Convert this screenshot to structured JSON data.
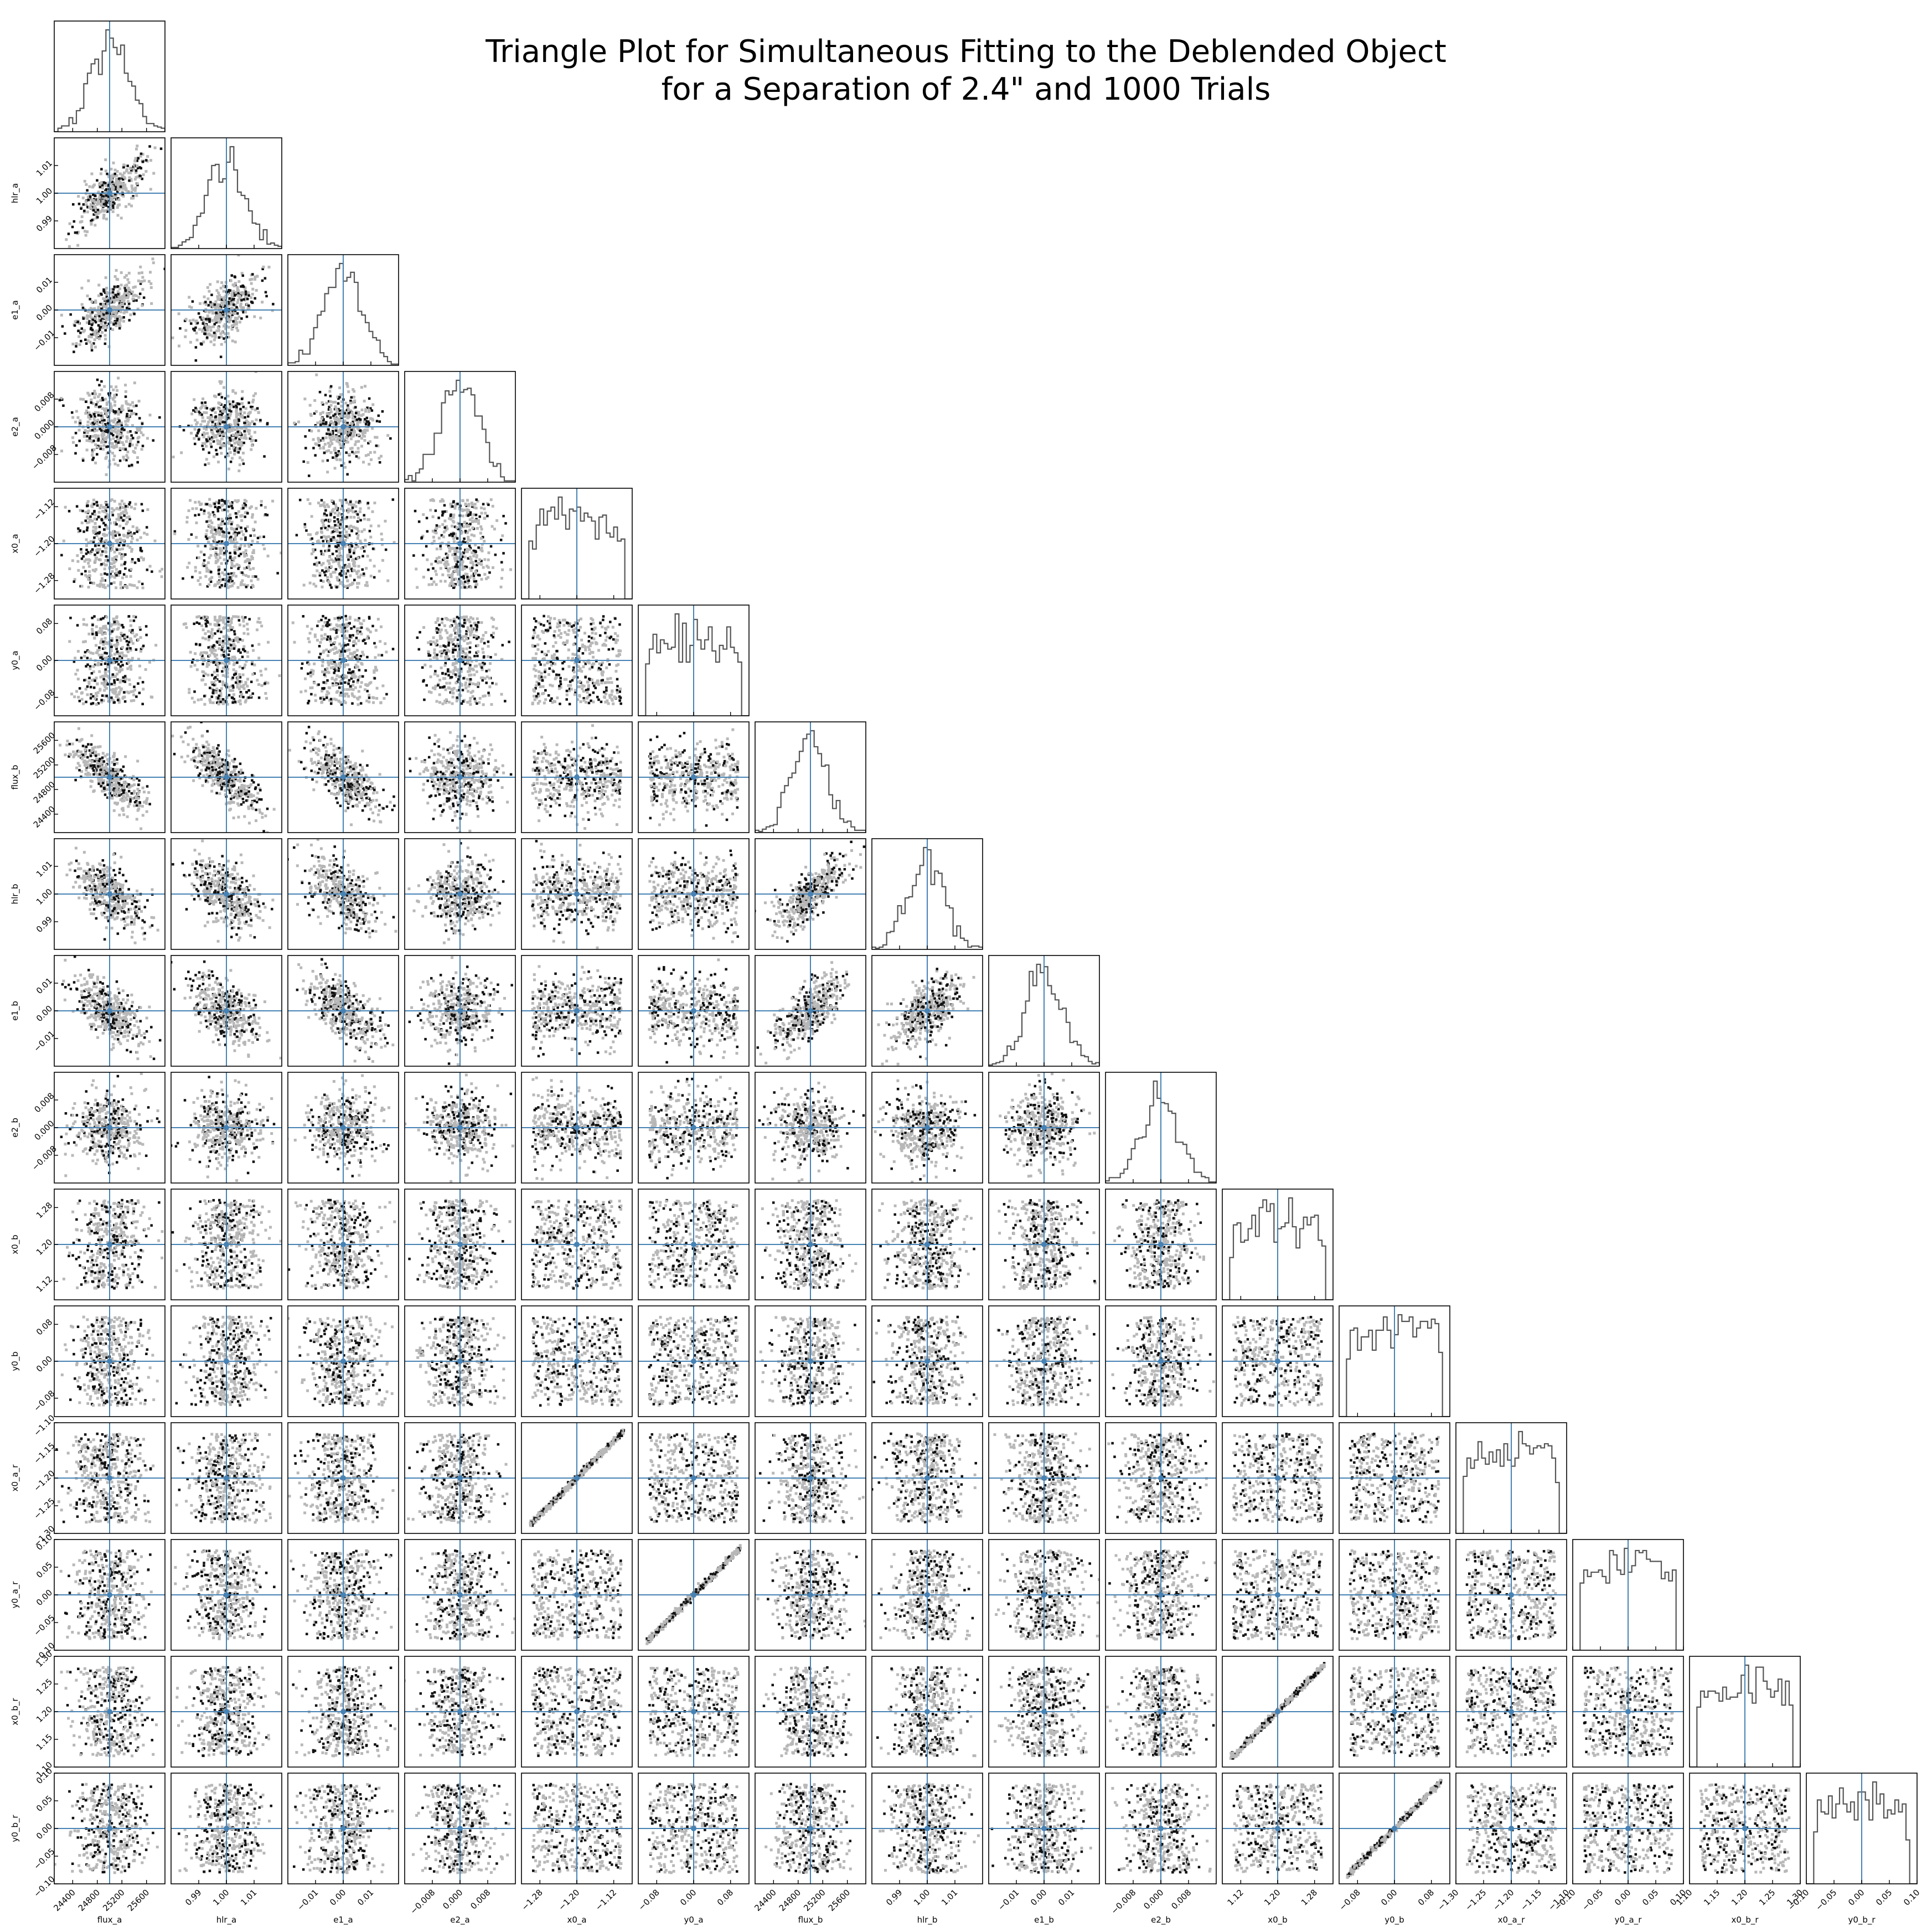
{
  "figure": {
    "title_line1": "Triangle Plot for Simultaneous Fitting to the Deblended Object",
    "title_line2": "for a Separation of 2.4\" and 1000 Trials"
  },
  "colors": {
    "truth_line": "#4682b4",
    "histogram": "#555555",
    "scatter_light": "#b8b8b8",
    "contour_dark": "#111111"
  },
  "chart_data": {
    "type": "scatter",
    "layout": "corner-triangle",
    "n_trials": 1000,
    "parameters": [
      {
        "name": "flux_a",
        "truth": 25000,
        "range": [
          24100,
          25900
        ],
        "ticks": [
          24400,
          24800,
          25200,
          25600
        ],
        "tick_labels": [
          "24400",
          "24800",
          "25200",
          "25600"
        ]
      },
      {
        "name": "hlr_a",
        "truth": 1.0,
        "range": [
          0.98,
          1.02
        ],
        "ticks": [
          0.99,
          1.0,
          1.01
        ],
        "tick_labels": [
          "0.99",
          "1.00",
          "1.01"
        ]
      },
      {
        "name": "e1_a",
        "truth": 0.0,
        "range": [
          -0.02,
          0.02
        ],
        "ticks": [
          -0.01,
          0.0,
          0.01
        ],
        "tick_labels": [
          "−0.01",
          "0.00",
          "0.01"
        ]
      },
      {
        "name": "e2_a",
        "truth": 0.0,
        "range": [
          -0.016,
          0.016
        ],
        "ticks": [
          -0.008,
          0.0,
          0.008
        ],
        "tick_labels": [
          "−0.008",
          "0.000",
          "0.008"
        ]
      },
      {
        "name": "x0_a",
        "truth": -1.2,
        "range": [
          -1.32,
          -1.08
        ],
        "ticks": [
          -1.28,
          -1.2,
          -1.12
        ],
        "tick_labels": [
          "−1.28",
          "−1.20",
          "−1.12"
        ]
      },
      {
        "name": "y0_a",
        "truth": 0.0,
        "range": [
          -0.12,
          0.12
        ],
        "ticks": [
          -0.08,
          0.0,
          0.08
        ],
        "tick_labels": [
          "−0.08",
          "0.00",
          "0.08"
        ]
      },
      {
        "name": "flux_b",
        "truth": 25000,
        "range": [
          24100,
          25900
        ],
        "ticks": [
          24400,
          24800,
          25200,
          25600
        ],
        "tick_labels": [
          "24400",
          "24800",
          "25200",
          "25600"
        ]
      },
      {
        "name": "hlr_b",
        "truth": 1.0,
        "range": [
          0.98,
          1.02
        ],
        "ticks": [
          0.99,
          1.0,
          1.01
        ],
        "tick_labels": [
          "0.99",
          "1.00",
          "1.01"
        ]
      },
      {
        "name": "e1_b",
        "truth": 0.0,
        "range": [
          -0.02,
          0.02
        ],
        "ticks": [
          -0.01,
          0.0,
          0.01
        ],
        "tick_labels": [
          "−0.01",
          "0.00",
          "0.01"
        ]
      },
      {
        "name": "e2_b",
        "truth": 0.0,
        "range": [
          -0.016,
          0.016
        ],
        "ticks": [
          -0.008,
          0.0,
          0.008
        ],
        "tick_labels": [
          "−0.008",
          "0.000",
          "0.008"
        ]
      },
      {
        "name": "x0_b",
        "truth": 1.2,
        "range": [
          1.08,
          1.32
        ],
        "ticks": [
          1.12,
          1.2,
          1.28
        ],
        "tick_labels": [
          "1.12",
          "1.20",
          "1.28"
        ]
      },
      {
        "name": "y0_b",
        "truth": 0.0,
        "range": [
          -0.12,
          0.12
        ],
        "ticks": [
          -0.08,
          0.0,
          0.08
        ],
        "tick_labels": [
          "−0.08",
          "0.00",
          "0.08"
        ]
      },
      {
        "name": "x0_a_r",
        "truth": -1.2,
        "range": [
          -1.3,
          -1.1
        ],
        "ticks": [
          -1.3,
          -1.25,
          -1.2,
          -1.15,
          -1.1
        ],
        "tick_labels": [
          "−1.30",
          "−1.25",
          "−1.20",
          "−1.15",
          "−1.10"
        ]
      },
      {
        "name": "y0_a_r",
        "truth": 0.0,
        "range": [
          -0.1,
          0.1
        ],
        "ticks": [
          -0.1,
          -0.05,
          0.0,
          0.05,
          0.1
        ],
        "tick_labels": [
          "−0.10",
          "−0.05",
          "0.00",
          "0.05",
          "0.10"
        ]
      },
      {
        "name": "x0_b_r",
        "truth": 1.2,
        "range": [
          1.1,
          1.3
        ],
        "ticks": [
          1.1,
          1.15,
          1.2,
          1.25,
          1.3
        ],
        "tick_labels": [
          "1.10",
          "1.15",
          "1.20",
          "1.25",
          "1.30"
        ]
      },
      {
        "name": "y0_b_r",
        "truth": 0.0,
        "range": [
          -0.1,
          0.1
        ],
        "ticks": [
          -0.1,
          -0.05,
          0.0,
          0.05,
          0.1
        ],
        "tick_labels": [
          "−0.10",
          "−0.05",
          "0.00",
          "0.05",
          "0.10"
        ]
      }
    ],
    "correlations": [
      {
        "pair": [
          "flux_a",
          "hlr_a"
        ],
        "r": 0.75
      },
      {
        "pair": [
          "flux_a",
          "e1_a"
        ],
        "r": 0.7
      },
      {
        "pair": [
          "hlr_a",
          "e1_a"
        ],
        "r": 0.6
      },
      {
        "pair": [
          "flux_a",
          "flux_b"
        ],
        "r": -0.75
      },
      {
        "pair": [
          "hlr_a",
          "flux_b"
        ],
        "r": -0.75
      },
      {
        "pair": [
          "e1_a",
          "flux_b"
        ],
        "r": -0.7
      },
      {
        "pair": [
          "flux_a",
          "hlr_b"
        ],
        "r": -0.6
      },
      {
        "pair": [
          "hlr_a",
          "hlr_b"
        ],
        "r": -0.55
      },
      {
        "pair": [
          "e1_a",
          "hlr_b"
        ],
        "r": -0.5
      },
      {
        "pair": [
          "flux_b",
          "hlr_b"
        ],
        "r": 0.75
      },
      {
        "pair": [
          "flux_a",
          "e1_b"
        ],
        "r": -0.6
      },
      {
        "pair": [
          "hlr_a",
          "e1_b"
        ],
        "r": -0.55
      },
      {
        "pair": [
          "e1_a",
          "e1_b"
        ],
        "r": -0.6
      },
      {
        "pair": [
          "flux_b",
          "e1_b"
        ],
        "r": 0.7
      },
      {
        "pair": [
          "hlr_b",
          "e1_b"
        ],
        "r": 0.6
      },
      {
        "pair": [
          "x0_a",
          "x0_a_r"
        ],
        "r": 0.98
      },
      {
        "pair": [
          "y0_a",
          "y0_a_r"
        ],
        "r": 0.99
      },
      {
        "pair": [
          "x0_b",
          "x0_b_r"
        ],
        "r": 0.98
      },
      {
        "pair": [
          "y0_b",
          "y0_b_r"
        ],
        "r": 0.99
      }
    ]
  }
}
